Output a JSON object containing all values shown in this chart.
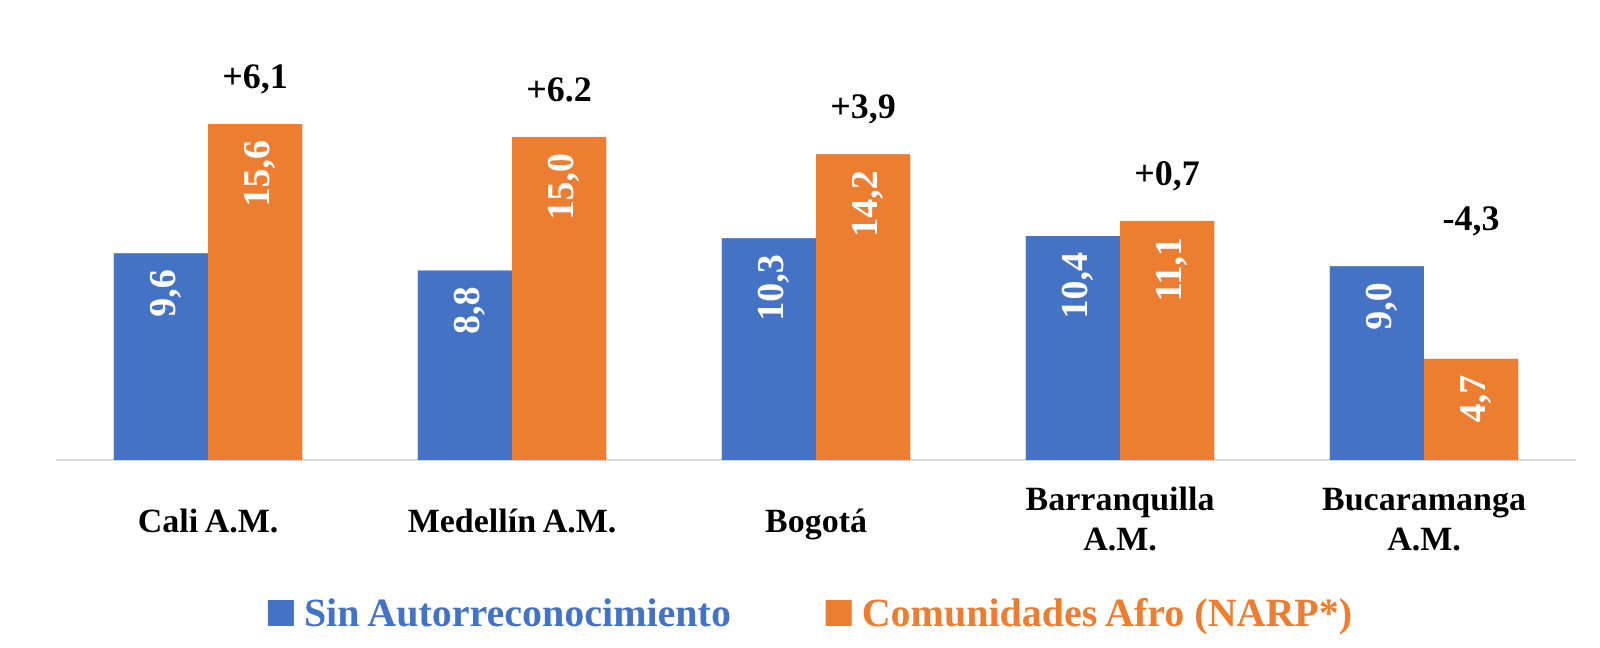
{
  "chart_data": {
    "type": "bar",
    "categories": [
      "Cali A.M.",
      "Medellín A.M.",
      "Bogotá",
      "Barranquilla A.M.",
      "Bucaramanga A.M."
    ],
    "series": [
      {
        "name": "Sin Autorreconocimiento",
        "color": "#4472c4",
        "values": [
          9.6,
          8.8,
          10.3,
          10.4,
          9.0
        ],
        "value_labels": [
          "9,6",
          "8,8",
          "10,3",
          "10,4",
          "9,0"
        ]
      },
      {
        "name": "Comunidades Afro (NARP*)",
        "color": "#ed7d31",
        "values": [
          15.6,
          15.0,
          14.2,
          11.1,
          4.7
        ],
        "value_labels": [
          "15,6",
          "15,0",
          "14,2",
          "11,1",
          "4,7"
        ]
      }
    ],
    "annotations": [
      "+6,1",
      "+6.2",
      "+3,9",
      "+0,7",
      "-4,3"
    ],
    "legend": "bottom"
  }
}
